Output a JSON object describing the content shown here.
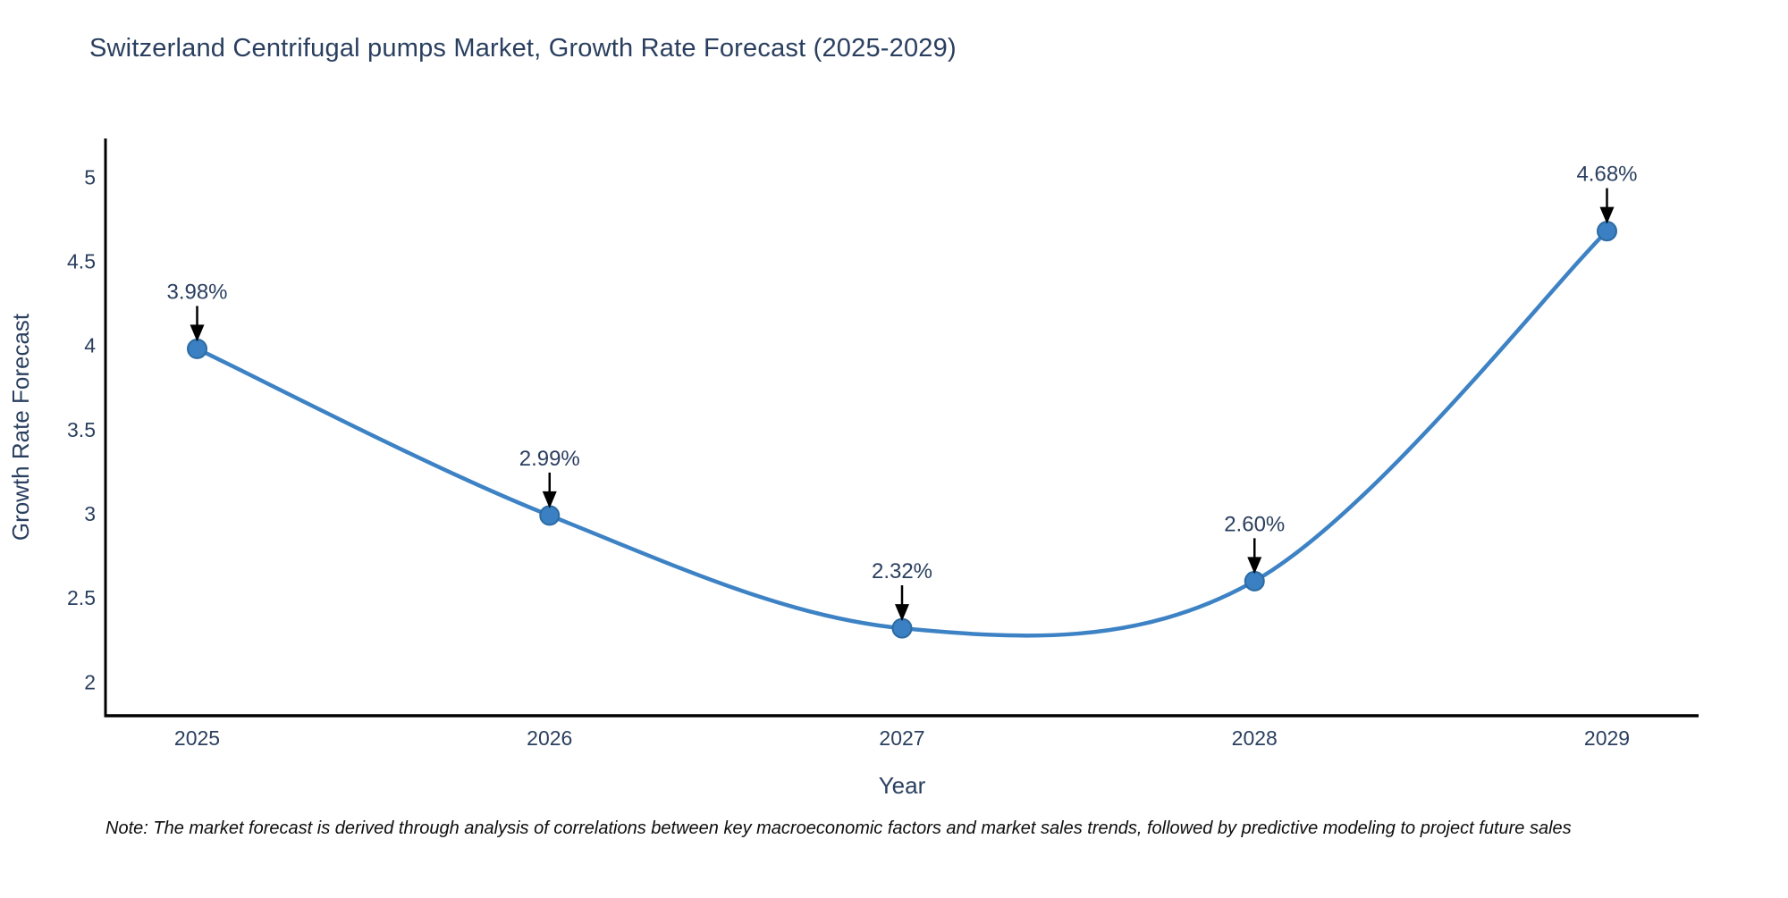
{
  "title": "Switzerland Centrifugal pumps Market, Growth Rate Forecast (2025-2029)",
  "note": "Note: The market forecast is derived through analysis of correlations between key macroeconomic factors and market sales trends, followed by predictive modeling to project future sales",
  "chart_data": {
    "type": "line",
    "title": "Switzerland Centrifugal pumps Market, Growth Rate Forecast (2025-2029)",
    "x": [
      2025,
      2026,
      2027,
      2028,
      2029
    ],
    "values": [
      3.98,
      2.99,
      2.32,
      2.6,
      4.68
    ],
    "data_labels": [
      "3.98%",
      "2.99%",
      "2.32%",
      "2.60%",
      "4.68%"
    ],
    "series_name": "Growth Rate Forecast",
    "xlabel": "Year",
    "ylabel": "Growth Rate Forecast",
    "xticks": [
      "2025",
      "2026",
      "2027",
      "2028",
      "2029"
    ],
    "yticks": [
      2,
      2.5,
      3,
      3.5,
      4,
      4.5,
      5
    ],
    "ylim": [
      1.8,
      5.23
    ],
    "xlim": [
      2024.74,
      2029.26
    ],
    "grid": false,
    "legend": "none",
    "smooth": true,
    "line_color": "#3d82c4",
    "marker_color": "#3a80c2",
    "marker_edge_color": "#2c6ba3",
    "axis_color": "#000000",
    "text_color": "#2a3f5f",
    "annotation_arrow_color": "#000000",
    "note_color": "#0d0d0d"
  }
}
